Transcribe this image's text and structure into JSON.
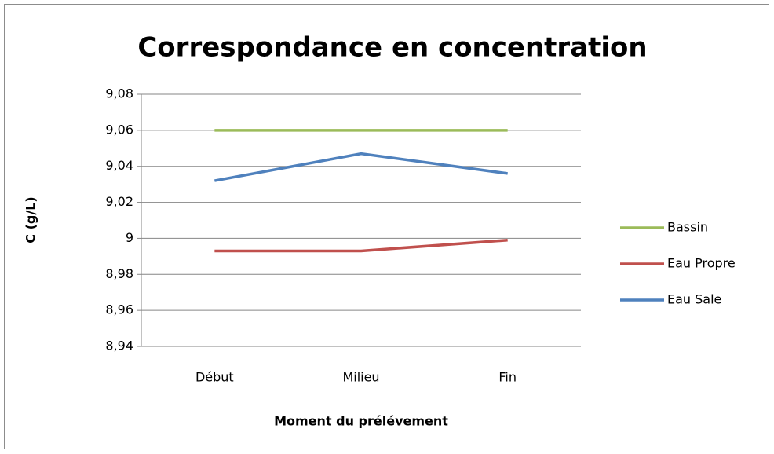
{
  "chart_data": {
    "type": "line",
    "title": "Correspondance en concentration",
    "x_label": "Moment du prélévement",
    "y_label": "C (g/L)",
    "categories": [
      "Début",
      "Milieu",
      "Fin"
    ],
    "series": [
      {
        "name": "Bassin",
        "color": "#9bbb59",
        "values": [
          9.06,
          9.06,
          9.06
        ]
      },
      {
        "name": "Eau Propre",
        "color": "#c0504d",
        "values": [
          8.993,
          8.993,
          8.999
        ]
      },
      {
        "name": "Eau Sale",
        "color": "#4f81bd",
        "values": [
          9.032,
          9.047,
          9.036
        ]
      }
    ],
    "ylim": [
      8.94,
      9.08
    ],
    "yticks": [
      {
        "value": 8.94,
        "label": "8,94"
      },
      {
        "value": 8.96,
        "label": "8,96"
      },
      {
        "value": 8.98,
        "label": "8,98"
      },
      9,
      {
        "value": 9.02,
        "label": "9,02"
      },
      {
        "value": 9.04,
        "label": "9,04"
      },
      {
        "value": 9.06,
        "label": "9,06"
      },
      {
        "value": 9.08,
        "label": "9,08"
      }
    ],
    "grid": true,
    "legend": "right"
  }
}
